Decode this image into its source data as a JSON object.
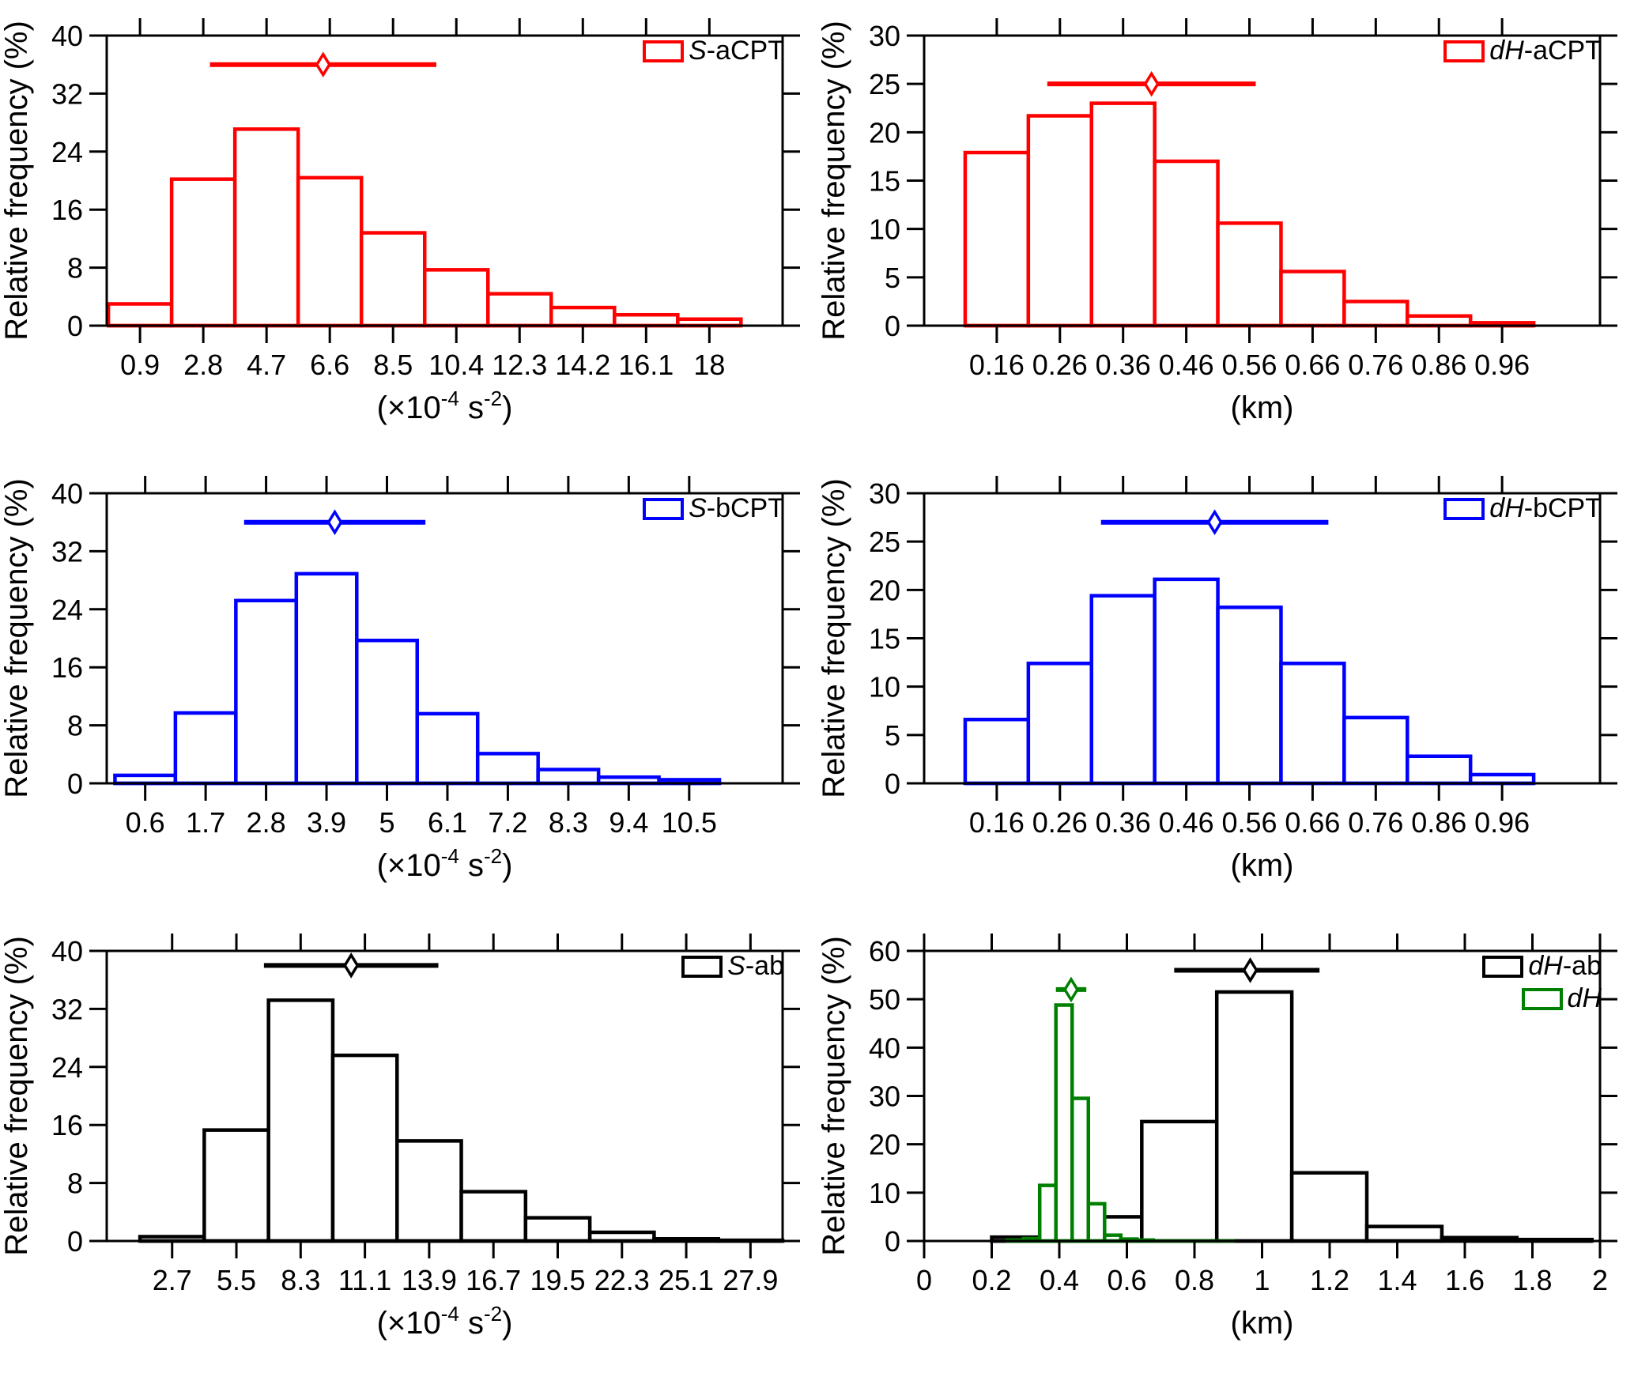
{
  "figure": {
    "background": "#ffffff",
    "ylabel": "Relative frequency (%)",
    "colors": {
      "red": "#ff0000",
      "blue": "#0000ff",
      "black": "#000000",
      "green": "#008000"
    }
  },
  "chart_data": [
    {
      "id": "s-acpt",
      "type": "bar",
      "position": {
        "row": 0,
        "col": 0
      },
      "ylabel": "Relative frequency (%)",
      "xlabel_segments": [
        {
          "t": "(×10"
        },
        {
          "t": "-4",
          "sup": true
        },
        {
          "t": " s"
        },
        {
          "t": "-2",
          "sup": true
        },
        {
          "t": ")"
        }
      ],
      "xlim": [
        -0.1,
        20.2
      ],
      "ylim": [
        0,
        40
      ],
      "xticks": [
        0.9,
        2.8,
        4.7,
        6.6,
        8.5,
        10.4,
        12.3,
        14.2,
        16.1,
        18
      ],
      "xtick_labels": [
        "0.9",
        "2.8",
        "4.7",
        "6.6",
        "8.5",
        "10.4",
        "12.3",
        "14.2",
        "16.1",
        "18"
      ],
      "yticks": [
        0,
        8,
        16,
        24,
        32,
        40
      ],
      "ytick_labels": [
        "0",
        "8",
        "16",
        "24",
        "32",
        "40"
      ],
      "series": [
        {
          "name": "S-aCPT",
          "legend_parts": [
            {
              "t": "S",
              "i": true
            },
            {
              "t": "-aCPT"
            }
          ],
          "color": "#ff0000",
          "bin_width": 1.9,
          "bin_centers": [
            0.9,
            2.8,
            4.7,
            6.6,
            8.5,
            10.4,
            12.3,
            14.2,
            16.1,
            18
          ],
          "values": [
            3.0,
            20.2,
            27.1,
            20.4,
            12.8,
            7.7,
            4.4,
            2.5,
            1.5,
            0.9
          ],
          "baseline_extent": [
            -0.05,
            18.95
          ]
        }
      ],
      "error_bars": [
        {
          "color": "#ff0000",
          "y": 36,
          "x_low": 3.0,
          "x_mean": 6.4,
          "x_high": 9.8
        }
      ]
    },
    {
      "id": "dh-acpt",
      "type": "bar",
      "position": {
        "row": 0,
        "col": 1
      },
      "ylabel": "Relative frequency (%)",
      "xlabel_segments": [
        {
          "t": "(km)"
        }
      ],
      "xlim": [
        0.045,
        1.115
      ],
      "ylim": [
        0,
        30
      ],
      "xticks": [
        0.16,
        0.26,
        0.36,
        0.46,
        0.56,
        0.66,
        0.76,
        0.86,
        0.96
      ],
      "xtick_labels": [
        "0.16",
        "0.26",
        "0.36",
        "0.46",
        "0.56",
        "0.66",
        "0.76",
        "0.86",
        "0.96"
      ],
      "yticks": [
        0,
        5,
        10,
        15,
        20,
        25,
        30
      ],
      "ytick_labels": [
        "0",
        "5",
        "10",
        "15",
        "20",
        "25",
        "30"
      ],
      "series": [
        {
          "name": "dH-aCPT",
          "legend_parts": [
            {
              "t": "dH",
              "i": true
            },
            {
              "t": "-aCPT"
            }
          ],
          "color": "#ff0000",
          "bin_width": 0.1,
          "bin_centers": [
            0.16,
            0.26,
            0.36,
            0.46,
            0.56,
            0.66,
            0.76,
            0.86,
            0.96
          ],
          "values": [
            17.9,
            21.7,
            23.0,
            17.0,
            10.6,
            5.6,
            2.5,
            1.0,
            0.3
          ],
          "baseline_extent": [
            0.11,
            1.01
          ]
        }
      ],
      "error_bars": [
        {
          "color": "#ff0000",
          "y": 25,
          "x_low": 0.24,
          "x_mean": 0.405,
          "x_high": 0.57
        }
      ]
    },
    {
      "id": "s-bcpt",
      "type": "bar",
      "position": {
        "row": 1,
        "col": 0
      },
      "ylabel": "Relative frequency (%)",
      "xlabel_segments": [
        {
          "t": "(×10"
        },
        {
          "t": "-4",
          "sup": true
        },
        {
          "t": " s"
        },
        {
          "t": "-2",
          "sup": true
        },
        {
          "t": ")"
        }
      ],
      "xlim": [
        -0.1,
        12.2
      ],
      "ylim": [
        0,
        40
      ],
      "xticks": [
        0.6,
        1.7,
        2.8,
        3.9,
        5,
        6.1,
        7.2,
        8.3,
        9.4,
        10.5
      ],
      "xtick_labels": [
        "0.6",
        "1.7",
        "2.8",
        "3.9",
        "5",
        "6.1",
        "7.2",
        "8.3",
        "9.4",
        "10.5"
      ],
      "yticks": [
        0,
        8,
        16,
        24,
        32,
        40
      ],
      "ytick_labels": [
        "0",
        "8",
        "16",
        "24",
        "32",
        "40"
      ],
      "series": [
        {
          "name": "S-bCPT",
          "legend_parts": [
            {
              "t": "S",
              "i": true
            },
            {
              "t": "-bCPT"
            }
          ],
          "color": "#0000ff",
          "bin_width": 1.1,
          "bin_centers": [
            0.6,
            1.7,
            2.8,
            3.9,
            5,
            6.1,
            7.2,
            8.3,
            9.4,
            10.5
          ],
          "values": [
            1.1,
            9.7,
            25.2,
            28.9,
            19.7,
            9.6,
            4.1,
            1.9,
            0.85,
            0.5
          ],
          "baseline_extent": [
            0.05,
            11.05
          ]
        }
      ],
      "error_bars": [
        {
          "color": "#0000ff",
          "y": 36,
          "x_low": 2.4,
          "x_mean": 4.05,
          "x_high": 5.7
        }
      ]
    },
    {
      "id": "dh-bcpt",
      "type": "bar",
      "position": {
        "row": 1,
        "col": 1
      },
      "ylabel": "Relative frequency (%)",
      "xlabel_segments": [
        {
          "t": "(km)"
        }
      ],
      "xlim": [
        0.045,
        1.115
      ],
      "ylim": [
        0,
        30
      ],
      "xticks": [
        0.16,
        0.26,
        0.36,
        0.46,
        0.56,
        0.66,
        0.76,
        0.86,
        0.96
      ],
      "xtick_labels": [
        "0.16",
        "0.26",
        "0.36",
        "0.46",
        "0.56",
        "0.66",
        "0.76",
        "0.86",
        "0.96"
      ],
      "yticks": [
        0,
        5,
        10,
        15,
        20,
        25,
        30
      ],
      "ytick_labels": [
        "0",
        "5",
        "10",
        "15",
        "20",
        "25",
        "30"
      ],
      "series": [
        {
          "name": "dH-bCPT",
          "legend_parts": [
            {
              "t": "dH",
              "i": true
            },
            {
              "t": "-bCPT"
            }
          ],
          "color": "#0000ff",
          "bin_width": 0.1,
          "bin_centers": [
            0.16,
            0.26,
            0.36,
            0.46,
            0.56,
            0.66,
            0.76,
            0.86,
            0.96
          ],
          "values": [
            6.6,
            12.4,
            19.4,
            21.1,
            18.2,
            12.4,
            6.8,
            2.8,
            0.9
          ],
          "baseline_extent": [
            0.11,
            1.01
          ]
        }
      ],
      "error_bars": [
        {
          "color": "#0000ff",
          "y": 27,
          "x_low": 0.325,
          "x_mean": 0.505,
          "x_high": 0.685
        }
      ]
    },
    {
      "id": "s-ab",
      "type": "bar",
      "position": {
        "row": 2,
        "col": 0
      },
      "ylabel": "Relative frequency (%)",
      "xlabel_segments": [
        {
          "t": "(×10"
        },
        {
          "t": "-4",
          "sup": true
        },
        {
          "t": " s"
        },
        {
          "t": "-2",
          "sup": true
        },
        {
          "t": ")"
        }
      ],
      "xlim": [
        -0.15,
        29.3
      ],
      "ylim": [
        0,
        40
      ],
      "xticks": [
        2.7,
        5.5,
        8.3,
        11.1,
        13.9,
        16.7,
        19.5,
        22.3,
        25.1,
        27.9
      ],
      "xtick_labels": [
        "2.7",
        "5.5",
        "8.3",
        "11.1",
        "13.9",
        "16.7",
        "19.5",
        "22.3",
        "25.1",
        "27.9"
      ],
      "yticks": [
        0,
        8,
        16,
        24,
        32,
        40
      ],
      "ytick_labels": [
        "0",
        "8",
        "16",
        "24",
        "32",
        "40"
      ],
      "series": [
        {
          "name": "S-ab",
          "legend_parts": [
            {
              "t": "S",
              "i": true
            },
            {
              "t": "-ab"
            }
          ],
          "color": "#000000",
          "bin_width": 2.8,
          "bin_centers": [
            2.7,
            5.5,
            8.3,
            11.1,
            13.9,
            16.7,
            19.5,
            22.3,
            25.1,
            27.9
          ],
          "values": [
            0.6,
            15.3,
            33.2,
            25.6,
            13.8,
            6.8,
            3.2,
            1.2,
            0.3,
            0.1
          ],
          "baseline_extent": [
            1.3,
            29.3
          ]
        }
      ],
      "error_bars": [
        {
          "color": "#000000",
          "y": 38,
          "x_low": 6.7,
          "x_mean": 10.5,
          "x_high": 14.3
        }
      ]
    },
    {
      "id": "dh-ab",
      "type": "bar",
      "position": {
        "row": 2,
        "col": 1
      },
      "ylabel": "Relative frequency (%)",
      "xlabel_segments": [
        {
          "t": "(km)"
        }
      ],
      "xlim": [
        0,
        2
      ],
      "ylim": [
        0,
        60
      ],
      "xticks": [
        0,
        0.2,
        0.4,
        0.6,
        0.8,
        1,
        1.2,
        1.4,
        1.6,
        1.8,
        2
      ],
      "xtick_labels": [
        "0",
        "0.2",
        "0.4",
        "0.6",
        "0.8",
        "1",
        "1.2",
        "1.4",
        "1.6",
        "1.8",
        "2"
      ],
      "yticks": [
        0,
        10,
        20,
        30,
        40,
        50,
        60
      ],
      "ytick_labels": [
        "0",
        "10",
        "20",
        "30",
        "40",
        "50",
        "60"
      ],
      "series": [
        {
          "name": "dH-ab",
          "legend_parts": [
            {
              "t": "dH",
              "i": true
            },
            {
              "t": "-ab"
            }
          ],
          "color": "#000000",
          "bin_width": 0.222,
          "bin_centers": [
            0.311,
            0.533,
            0.755,
            0.977,
            1.199,
            1.421,
            1.643,
            1.865
          ],
          "values": [
            0.8,
            5.0,
            24.7,
            51.5,
            14.1,
            3.0,
            0.7,
            0.3
          ],
          "baseline_extent": [
            0.2,
            1.976
          ]
        },
        {
          "name": "dH",
          "legend_parts": [
            {
              "t": "dH",
              "i": true
            }
          ],
          "color": "#008000",
          "bin_width": 0.048,
          "bin_centers": [
            0.27,
            0.318,
            0.366,
            0.414,
            0.462,
            0.51,
            0.558,
            0.606,
            0.654
          ],
          "values": [
            0.2,
            0.5,
            11.5,
            48.8,
            29.5,
            7.7,
            1.2,
            0.4,
            0.2
          ],
          "baseline_extent": [
            0.246,
            0.92
          ]
        }
      ],
      "error_bars": [
        {
          "color": "#000000",
          "y": 56,
          "x_low": 0.74,
          "x_mean": 0.965,
          "x_high": 1.17
        },
        {
          "color": "#008000",
          "y": 52,
          "x_low": 0.39,
          "x_mean": 0.435,
          "x_high": 0.48
        }
      ]
    }
  ]
}
